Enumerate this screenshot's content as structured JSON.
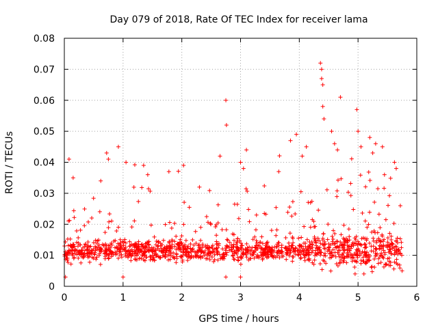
{
  "chart_data": {
    "type": "scatter",
    "title": "Day 079 of 2018, Rate Of TEC Index for receiver lama",
    "xlabel": "GPS time / hours",
    "ylabel": "ROTI / TECUs",
    "xlim": [
      0,
      6
    ],
    "ylim": [
      0,
      0.08
    ],
    "xticks": [
      "0",
      "1",
      "2",
      "3",
      "4",
      "5",
      "6"
    ],
    "yticks": [
      "0",
      "0.01",
      "0.02",
      "0.03",
      "0.04",
      "0.05",
      "0.06",
      "0.07",
      "0.08"
    ],
    "grid": true,
    "marker": "+",
    "color": "#ff0000",
    "series": [
      {
        "name": "ROTI",
        "points": [
          [
            0.08,
            0.041
          ],
          [
            0.15,
            0.035
          ],
          [
            0.62,
            0.034
          ],
          [
            0.72,
            0.043
          ],
          [
            0.75,
            0.041
          ],
          [
            0.92,
            0.045
          ],
          [
            1.05,
            0.04
          ],
          [
            1.35,
            0.039
          ],
          [
            1.42,
            0.036
          ],
          [
            1.78,
            0.037
          ],
          [
            2.03,
            0.039
          ],
          [
            2.3,
            0.032
          ],
          [
            2.65,
            0.042
          ],
          [
            2.75,
            0.06
          ],
          [
            2.76,
            0.052
          ],
          [
            3.0,
            0.04
          ],
          [
            3.1,
            0.044
          ],
          [
            3.05,
            0.038
          ],
          [
            3.65,
            0.037
          ],
          [
            3.85,
            0.047
          ],
          [
            3.95,
            0.049
          ],
          [
            4.05,
            0.042
          ],
          [
            4.12,
            0.045
          ],
          [
            4.36,
            0.072
          ],
          [
            4.38,
            0.07
          ],
          [
            4.38,
            0.067
          ],
          [
            4.4,
            0.065
          ],
          [
            4.4,
            0.058
          ],
          [
            4.42,
            0.054
          ],
          [
            4.55,
            0.05
          ],
          [
            4.7,
            0.061
          ],
          [
            4.6,
            0.046
          ],
          [
            4.65,
            0.044
          ],
          [
            4.98,
            0.057
          ],
          [
            5.0,
            0.05
          ],
          [
            5.05,
            0.045
          ],
          [
            5.2,
            0.048
          ],
          [
            5.3,
            0.046
          ],
          [
            5.25,
            0.043
          ],
          [
            5.45,
            0.036
          ],
          [
            5.62,
            0.04
          ],
          [
            5.65,
            0.038
          ],
          [
            5.72,
            0.026
          ],
          [
            0.02,
            0.003
          ],
          [
            1.0,
            0.003
          ],
          [
            2.75,
            0.003
          ],
          [
            3.0,
            0.003
          ],
          [
            4.95,
            0.004
          ],
          [
            5.1,
            0.004
          ],
          [
            5.75,
            0.005
          ]
        ]
      }
    ]
  }
}
